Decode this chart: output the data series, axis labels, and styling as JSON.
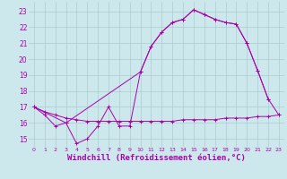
{
  "background_color": "#cce8ec",
  "grid_color": "#aacccc",
  "line_color": "#aa00aa",
  "xlabel": "Windchill (Refroidissement éolien,°C)",
  "xlabel_fontsize": 6.5,
  "ylim": [
    14.5,
    23.6
  ],
  "xlim": [
    -0.5,
    23.5
  ],
  "xticks": [
    0,
    1,
    2,
    3,
    4,
    5,
    6,
    7,
    8,
    9,
    10,
    11,
    12,
    13,
    14,
    15,
    16,
    17,
    18,
    19,
    20,
    21,
    22,
    23
  ],
  "yticks": [
    15,
    16,
    17,
    18,
    19,
    20,
    21,
    22,
    23
  ],
  "series1_x": [
    0,
    1,
    2,
    3,
    4,
    5,
    6,
    7,
    8,
    9,
    10,
    11,
    12,
    13,
    14,
    15,
    16,
    17,
    18,
    19,
    20,
    21,
    22
  ],
  "series1_y": [
    17.0,
    16.5,
    15.8,
    16.0,
    14.7,
    15.0,
    15.8,
    17.0,
    15.8,
    15.8,
    19.2,
    20.8,
    21.7,
    22.3,
    22.5,
    23.1,
    22.8,
    22.5,
    22.3,
    22.2,
    21.0,
    19.3,
    17.5
  ],
  "series2_x": [
    0,
    1,
    2,
    3,
    4,
    5,
    6,
    7,
    8,
    9,
    10,
    11,
    12,
    13,
    14,
    15,
    16,
    17,
    18,
    19,
    20,
    21,
    22,
    23
  ],
  "series2_y": [
    17.0,
    16.7,
    16.5,
    16.3,
    16.2,
    16.1,
    16.1,
    16.1,
    16.1,
    16.1,
    16.1,
    16.1,
    16.1,
    16.1,
    16.2,
    16.2,
    16.2,
    16.2,
    16.3,
    16.3,
    16.3,
    16.4,
    16.4,
    16.5
  ],
  "series3_x": [
    0,
    3,
    10,
    11,
    12,
    13,
    14,
    15,
    16,
    17,
    18,
    19,
    20,
    21,
    22,
    23
  ],
  "series3_y": [
    17.0,
    16.0,
    19.2,
    20.8,
    21.7,
    22.3,
    22.5,
    23.1,
    22.8,
    22.5,
    22.3,
    22.2,
    21.0,
    19.3,
    17.5,
    16.5
  ]
}
